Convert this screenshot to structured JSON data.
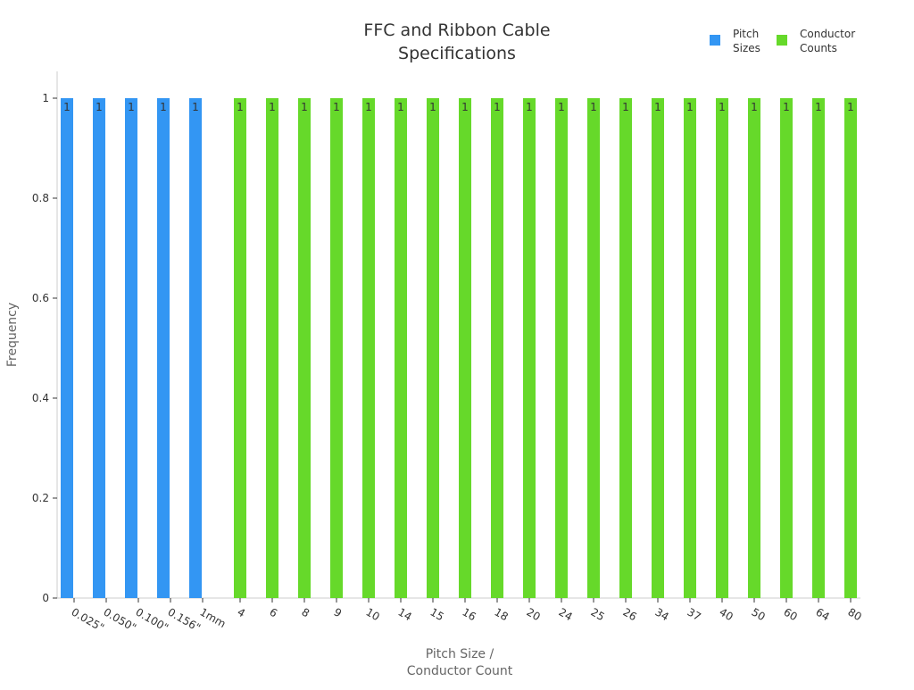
{
  "chart_data": {
    "type": "bar",
    "title": [
      "FFC and Ribbon Cable",
      "Specifications"
    ],
    "xlabel": [
      "Pitch Size /",
      "Conductor Count"
    ],
    "ylabel": "Frequency",
    "ylim": [
      0,
      1
    ],
    "yticks": [
      "0",
      "0.2",
      "0.4",
      "0.6",
      "0.8",
      "1"
    ],
    "grid": false,
    "legend_position": "top-right",
    "series": [
      {
        "name": [
          "Pitch",
          "Sizes"
        ],
        "color": "#3396f3",
        "categories": [
          "0.025\"",
          "0.050\"",
          "0.100\"",
          "0.156\"",
          "1mm"
        ],
        "values": [
          1,
          1,
          1,
          1,
          1
        ]
      },
      {
        "name": [
          "Conductor",
          "Counts"
        ],
        "color": "#66d92a",
        "categories": [
          "4",
          "6",
          "8",
          "9",
          "10",
          "14",
          "15",
          "16",
          "18",
          "20",
          "24",
          "25",
          "26",
          "34",
          "37",
          "40",
          "50",
          "60",
          "64",
          "80"
        ],
        "values": [
          1,
          1,
          1,
          1,
          1,
          1,
          1,
          1,
          1,
          1,
          1,
          1,
          1,
          1,
          1,
          1,
          1,
          1,
          1,
          1
        ]
      }
    ]
  }
}
